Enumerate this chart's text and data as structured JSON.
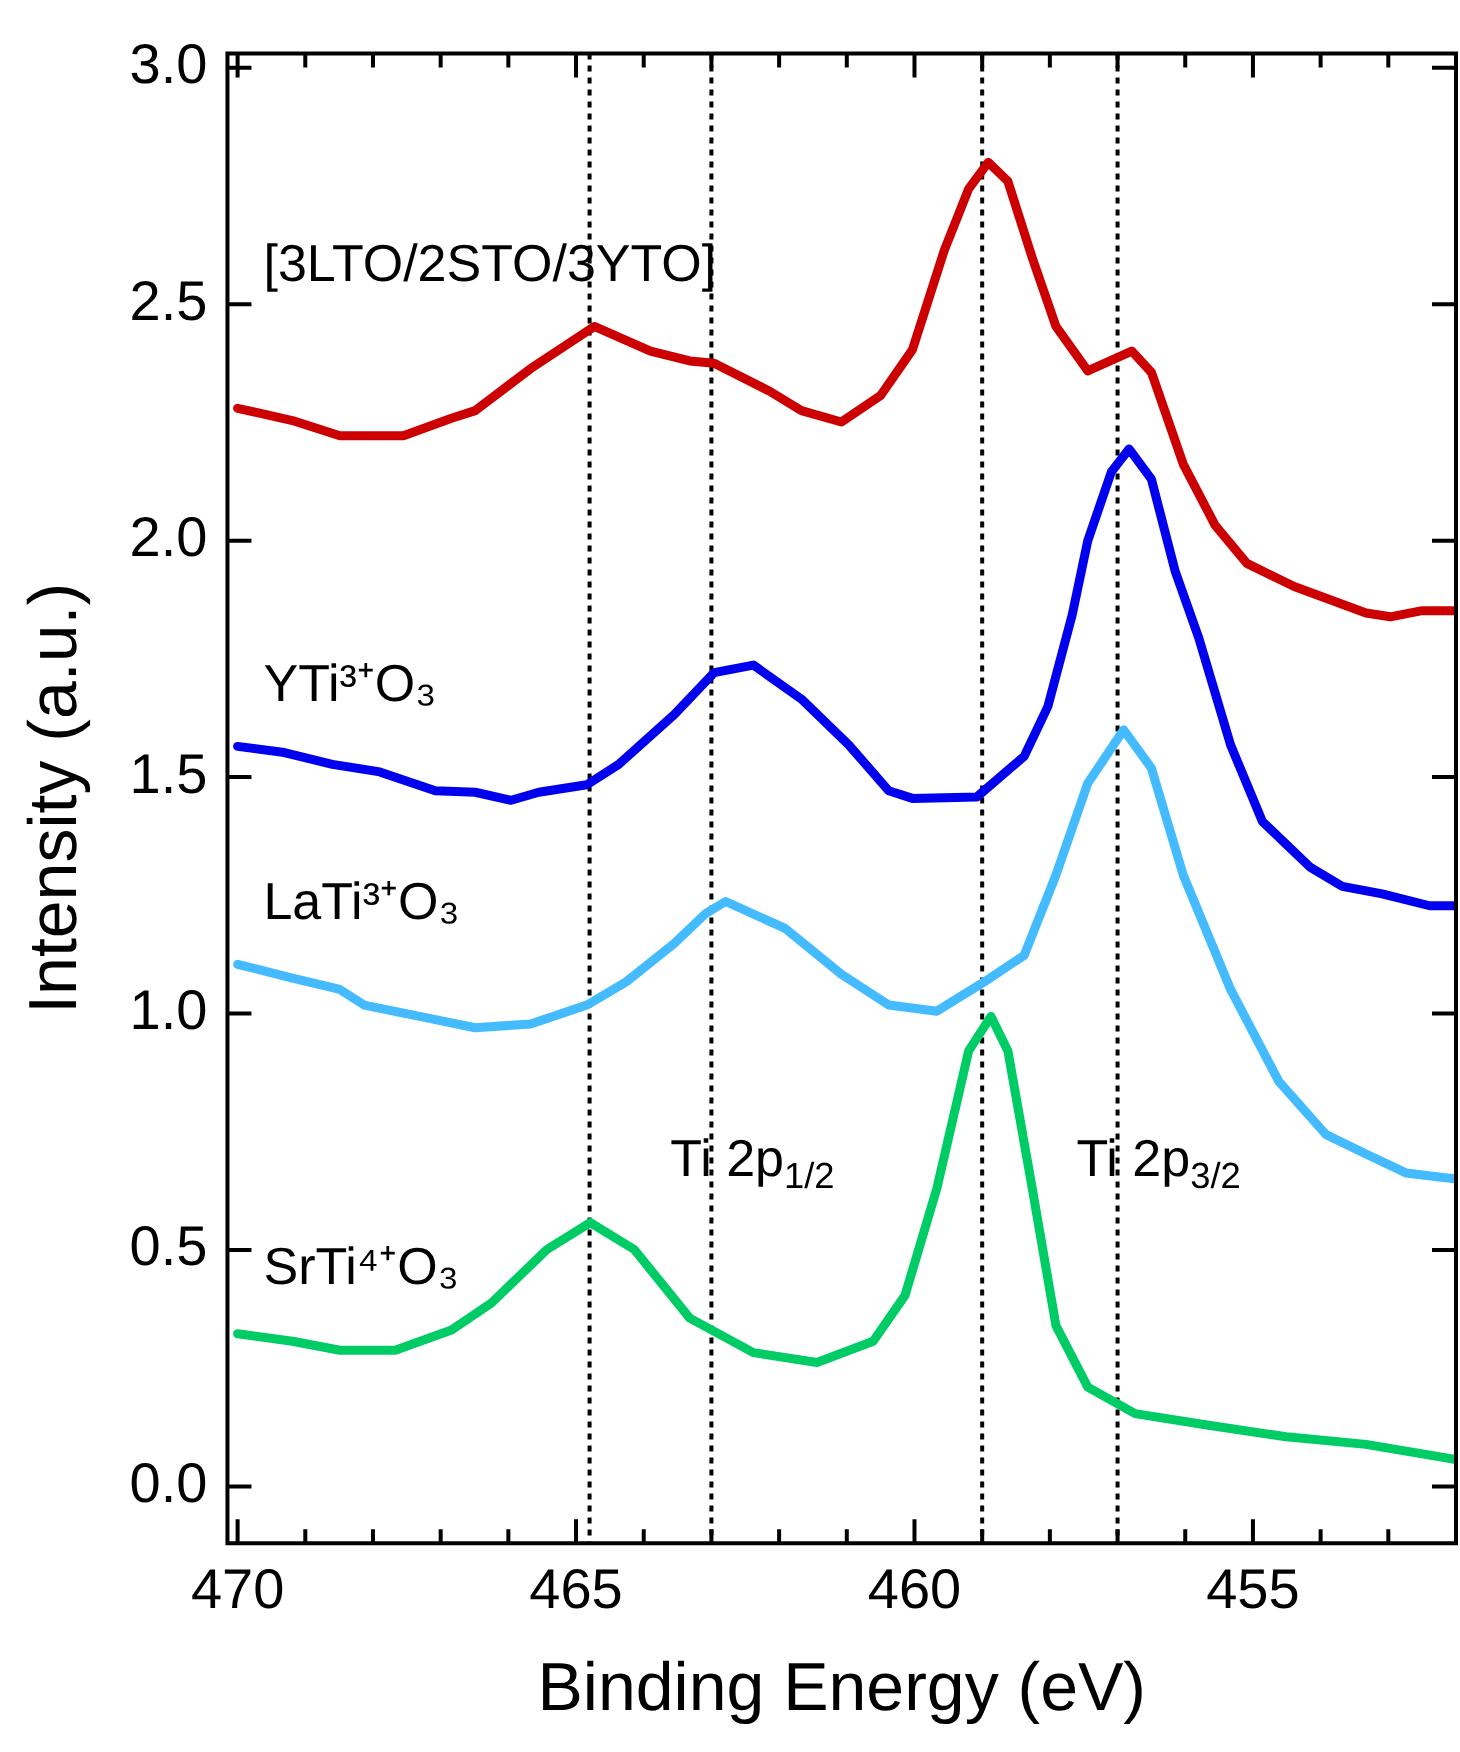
{
  "chart_data": {
    "type": "line",
    "xlabel": "Binding Energy (eV)",
    "ylabel": "Intensity (a.u.)",
    "xlim": [
      470.15,
      452
    ],
    "ylim": [
      -0.12,
      3.03
    ],
    "xticks": [
      470,
      {
        "value": 469,
        "label": null
      },
      {
        "value": 468,
        "label": null
      },
      {
        "value": 467,
        "label": null
      },
      {
        "value": 466,
        "label": null
      },
      465,
      {
        "value": 464,
        "label": null
      },
      {
        "value": 463,
        "label": null
      },
      {
        "value": 462,
        "label": null
      },
      {
        "value": 461,
        "label": null
      },
      460,
      {
        "value": 459,
        "label": null
      },
      {
        "value": 458,
        "label": null
      },
      {
        "value": 457,
        "label": null
      },
      {
        "value": 456,
        "label": null
      },
      455,
      {
        "value": 454,
        "label": null
      },
      {
        "value": 453,
        "label": null
      }
    ],
    "yticks": [
      {
        "value": 0,
        "label": "0.0"
      },
      {
        "value": 0.5,
        "label": "0.5"
      },
      {
        "value": 1,
        "label": "1.0"
      },
      {
        "value": 1.5,
        "label": "1.5"
      },
      {
        "value": 2,
        "label": "2.0"
      },
      {
        "value": 2.5,
        "label": "2.5"
      },
      {
        "value": 3,
        "label": "3.0"
      }
    ],
    "grid": false,
    "legend": false,
    "marker": "none",
    "line_style": "solid",
    "series": [
      {
        "name": "[3LTO/2STO/3YTO]",
        "color": "#cc0000",
        "x": [
          470.0,
          469.19,
          468.49,
          467.55,
          466.84,
          466.49,
          465.67,
          464.73,
          463.9,
          463.32,
          462.96,
          462.14,
          461.67,
          461.08,
          460.5,
          460.03,
          459.56,
          459.2,
          458.91,
          458.62,
          458.26,
          457.91,
          457.44,
          456.79,
          456.5,
          456.03,
          455.56,
          455.09,
          454.39,
          453.33,
          452.97,
          452.5,
          452.0
        ],
        "values": [
          2.28,
          2.254,
          2.222,
          2.222,
          2.259,
          2.275,
          2.364,
          2.453,
          2.401,
          2.38,
          2.375,
          2.316,
          2.275,
          2.251,
          2.307,
          2.404,
          2.614,
          2.744,
          2.8,
          2.76,
          2.598,
          2.453,
          2.359,
          2.401,
          2.356,
          2.162,
          2.033,
          1.952,
          1.903,
          1.847,
          1.839,
          1.852,
          1.852
        ]
      },
      {
        "name": "YTi³⁺O₃",
        "color": "#0000ee",
        "x": [
          470.0,
          469.31,
          468.6,
          467.9,
          467.08,
          466.49,
          465.96,
          465.55,
          464.84,
          464.37,
          463.55,
          462.96,
          462.38,
          461.67,
          460.97,
          460.38,
          460.03,
          459.08,
          458.38,
          458.03,
          457.67,
          457.44,
          457.09,
          456.83,
          456.5,
          456.15,
          455.8,
          455.33,
          454.86,
          454.15,
          453.68,
          453.09,
          452.39,
          452.0
        ],
        "values": [
          1.565,
          1.552,
          1.527,
          1.511,
          1.471,
          1.468,
          1.451,
          1.468,
          1.484,
          1.527,
          1.632,
          1.721,
          1.737,
          1.665,
          1.568,
          1.471,
          1.455,
          1.458,
          1.544,
          1.649,
          1.843,
          2.0,
          2.146,
          2.194,
          2.13,
          1.936,
          1.794,
          1.568,
          1.406,
          1.309,
          1.269,
          1.253,
          1.228,
          1.228
        ]
      },
      {
        "name": "LaTi³⁺O₃",
        "color": "#44bbff",
        "x": [
          470.0,
          469.19,
          468.49,
          468.13,
          467.31,
          466.49,
          465.67,
          464.84,
          464.26,
          463.55,
          463.08,
          462.79,
          461.91,
          461.08,
          460.38,
          459.67,
          458.97,
          458.38,
          457.91,
          457.44,
          456.91,
          456.5,
          456.03,
          455.33,
          454.62,
          453.92,
          453.33,
          452.74,
          452.0
        ],
        "values": [
          1.104,
          1.075,
          1.051,
          1.018,
          0.994,
          0.97,
          0.978,
          1.018,
          1.067,
          1.148,
          1.212,
          1.237,
          1.18,
          1.083,
          1.018,
          1.005,
          1.067,
          1.123,
          1.293,
          1.487,
          1.6,
          1.519,
          1.293,
          1.051,
          0.857,
          0.744,
          0.703,
          0.663,
          0.65
        ]
      },
      {
        "name": "SrTi⁴⁺O₃",
        "color": "#00cc66",
        "x": [
          470.0,
          469.19,
          468.49,
          467.67,
          466.84,
          466.25,
          465.43,
          464.79,
          464.14,
          463.32,
          462.38,
          461.44,
          460.61,
          460.14,
          459.67,
          459.2,
          458.87,
          458.62,
          458.26,
          457.91,
          457.44,
          456.74,
          455.68,
          454.51,
          453.33,
          452.0
        ],
        "values": [
          0.323,
          0.307,
          0.288,
          0.288,
          0.331,
          0.388,
          0.501,
          0.558,
          0.501,
          0.356,
          0.283,
          0.262,
          0.307,
          0.404,
          0.63,
          0.921,
          0.994,
          0.921,
          0.63,
          0.34,
          0.21,
          0.154,
          0.13,
          0.105,
          0.089,
          0.057
        ]
      }
    ],
    "ref_lines": [
      {
        "axis": "x",
        "value": 464.8,
        "color": "#000000",
        "line_style": "dotted"
      },
      {
        "axis": "x",
        "value": 463,
        "color": "#000000",
        "line_style": "dotted"
      },
      {
        "axis": "x",
        "value": 459,
        "color": "#000000",
        "line_style": "dotted"
      },
      {
        "axis": "x",
        "value": 457,
        "color": "#000000",
        "line_style": "dotted"
      }
    ],
    "annotations": [
      "Ti 2p$_{1/2}$",
      "Ti 2p$_{3/2}$"
    ]
  }
}
